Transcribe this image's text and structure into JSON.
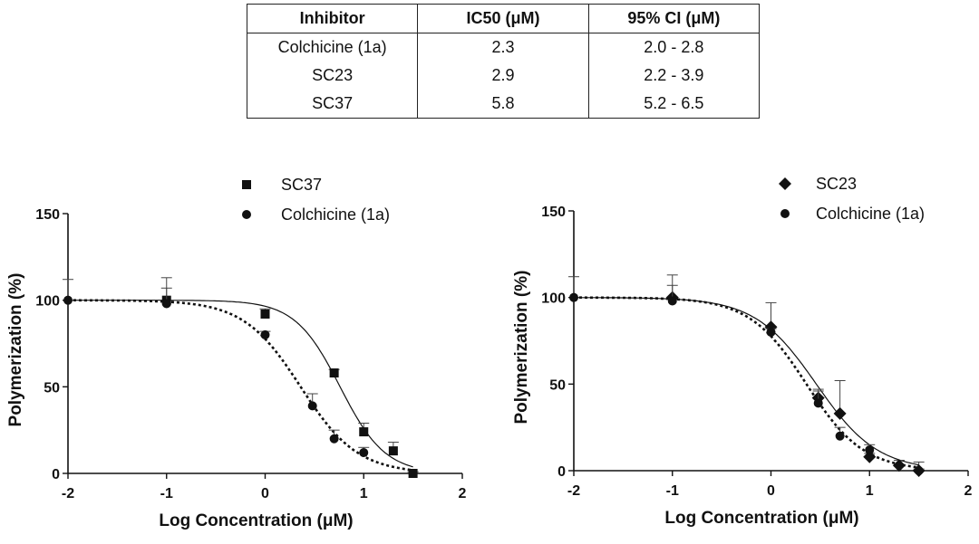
{
  "table": {
    "headers": [
      "Inhibitor",
      "IC50 (μM)",
      "95% CI (μM)"
    ],
    "rows": [
      [
        "Colchicine (1a)",
        "2.3",
        "2.0 - 2.8"
      ],
      [
        "SC23",
        "2.9",
        "2.2 - 3.9"
      ],
      [
        "SC37",
        "5.8",
        "5.2 - 6.5"
      ]
    ]
  },
  "chart_data": [
    {
      "type": "scatter",
      "xlabel": "Log Concentration (μM)",
      "ylabel": "Polymerization (%)",
      "xlim": [
        -2,
        2
      ],
      "ylim": [
        0,
        150
      ],
      "xticks": [
        -2,
        -1,
        0,
        1,
        2
      ],
      "yticks": [
        0,
        50,
        100,
        150
      ],
      "legend_position": "top-right",
      "series": [
        {
          "name": "SC37",
          "marker": "square",
          "line": "solid",
          "x": [
            -1,
            0,
            0.7,
            1,
            1.3,
            1.5
          ],
          "y": [
            100,
            92,
            58,
            24,
            13,
            0
          ],
          "err": [
            13,
            3,
            2,
            5,
            5,
            1
          ],
          "curve": {
            "top": 100,
            "bottom": 0,
            "logIC50": 0.76,
            "hill": 1.9
          }
        },
        {
          "name": "Colchicine (1a)",
          "marker": "circle",
          "line": "dotted",
          "x": [
            -1,
            0,
            0.48,
            0.7,
            1,
            1.5
          ],
          "y": [
            98,
            80,
            39,
            20,
            12,
            0
          ],
          "err": [
            9,
            2,
            7,
            5,
            3,
            1
          ],
          "curve": {
            "top": 100,
            "bottom": 0,
            "logIC50": 0.36,
            "hill": 1.5
          }
        }
      ]
    },
    {
      "type": "scatter",
      "xlabel": "Log Concentration (μM)",
      "ylabel": "Polymerization (%)",
      "xlim": [
        -2,
        2
      ],
      "ylim": [
        0,
        150
      ],
      "xticks": [
        -2,
        -1,
        0,
        1,
        2
      ],
      "yticks": [
        0,
        50,
        100,
        150
      ],
      "legend_position": "top-right",
      "series": [
        {
          "name": "SC23",
          "marker": "diamond",
          "line": "solid",
          "x": [
            -1,
            0,
            0.48,
            0.7,
            1,
            1.3,
            1.5
          ],
          "y": [
            100,
            83,
            42,
            33,
            8,
            3,
            0
          ],
          "err": [
            13,
            14,
            5,
            19,
            2,
            3,
            5
          ],
          "curve": {
            "top": 100,
            "bottom": 0,
            "logIC50": 0.46,
            "hill": 1.4
          }
        },
        {
          "name": "Colchicine (1a)",
          "marker": "circle",
          "line": "dotted",
          "x": [
            -1,
            0,
            0.48,
            0.7,
            1,
            1.5
          ],
          "y": [
            98,
            80,
            39,
            20,
            12,
            0
          ],
          "err": [
            9,
            2,
            7,
            5,
            3,
            1
          ],
          "curve": {
            "top": 100,
            "bottom": 0,
            "logIC50": 0.36,
            "hill": 1.5
          }
        }
      ]
    }
  ],
  "colors": {
    "ink": "#111111"
  }
}
